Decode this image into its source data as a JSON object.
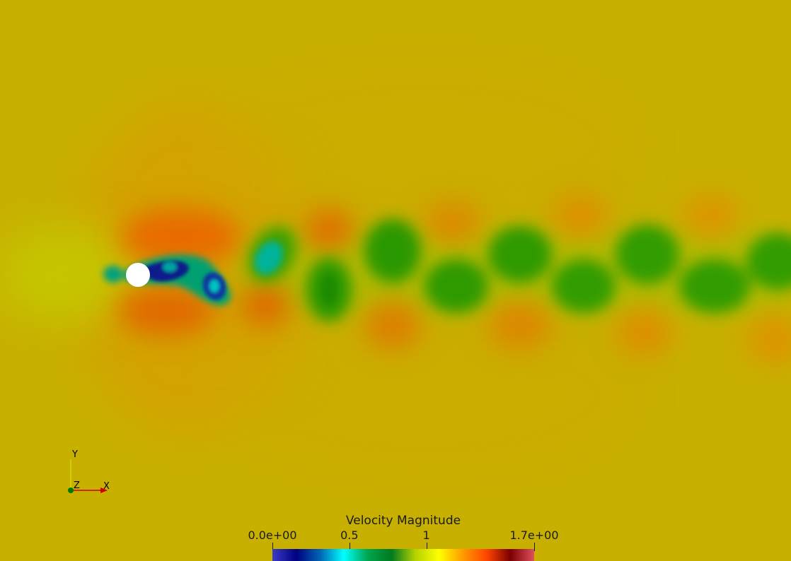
{
  "scene": {
    "description_colors": {
      "background": "#c8b000",
      "cylinder": "#ffffff"
    }
  },
  "colorbar": {
    "title": "Velocity Magnitude",
    "ticks": [
      {
        "label": "0.0e+00",
        "value": 0
      },
      {
        "label": "0.5",
        "value": 0.5
      },
      {
        "label": "1",
        "value": 1
      },
      {
        "label": "1.7e+00",
        "value": 1.7
      }
    ],
    "range": [
      0,
      1.7
    ],
    "colormap": [
      "#3b3bc8",
      "#000080",
      "#0064b4",
      "#00ffff",
      "#00a650",
      "#007a1e",
      "#b4d200",
      "#ffff00",
      "#ff9b00",
      "#ff4600",
      "#7a0000",
      "#e05060"
    ]
  },
  "axes": {
    "x_label": "X",
    "y_label": "Y",
    "z_label": "Z"
  }
}
